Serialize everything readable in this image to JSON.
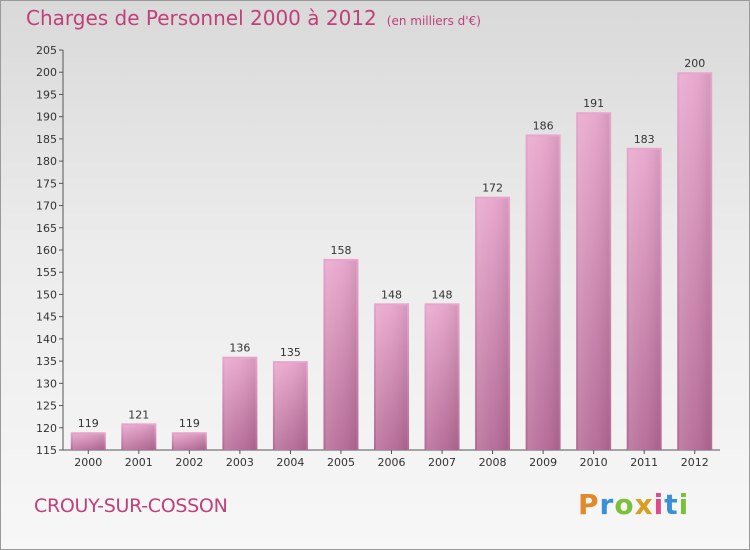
{
  "header": {
    "title": "Charges de Personnel 2000 à 2012",
    "subtitle": "(en milliers d'€)"
  },
  "footer": {
    "city": "CROUY-SUR-COSSON",
    "logo_letters": [
      "P",
      "r",
      "o",
      "x",
      "i",
      "t",
      "i"
    ],
    "logo_colors": [
      "#e08a2a",
      "#3a8fd8",
      "#7bbf3a",
      "#d8a020",
      "#e04a8a",
      "#3a8fd8",
      "#7bbf3a"
    ]
  },
  "colors": {
    "title": "#c0407a",
    "bar_top": "#e8a6cc",
    "bar_bottom": "#b56a96",
    "axis": "#555555"
  },
  "chart_data": {
    "type": "bar",
    "categories": [
      "2000",
      "2001",
      "2002",
      "2003",
      "2004",
      "2005",
      "2006",
      "2007",
      "2008",
      "2009",
      "2010",
      "2011",
      "2012"
    ],
    "values": [
      119,
      121,
      119,
      136,
      135,
      158,
      148,
      148,
      172,
      186,
      191,
      183,
      200
    ],
    "ylim": [
      115,
      205
    ],
    "yticks": [
      115,
      120,
      125,
      130,
      135,
      140,
      145,
      150,
      155,
      160,
      165,
      170,
      175,
      180,
      185,
      190,
      195,
      200,
      205
    ],
    "grid": false,
    "data_labels": true
  }
}
